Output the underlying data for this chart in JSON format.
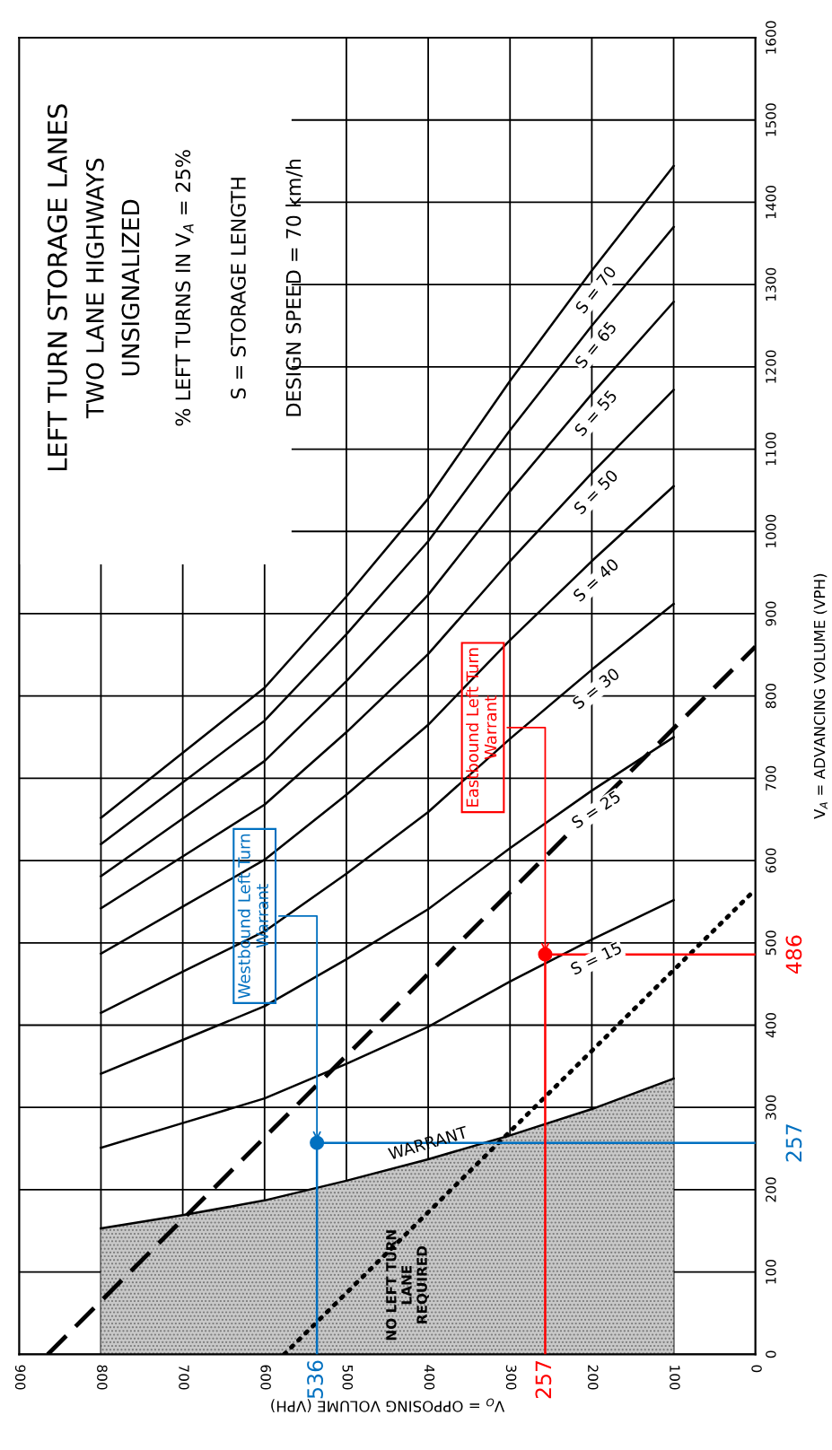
{
  "chart_data": {
    "type": "line",
    "title": "LEFT TURN STORAGE LANES",
    "subtitle": "TWO LANE HIGHWAYS\nUNSIGNALIZED",
    "xlabel": "V$_{O}$ = OPPOSING VOLUME (VPH)",
    "ylabel": "V$_{A}$ = ADVANCING VOLUME (VPH)",
    "xlim": [
      900,
      0
    ],
    "ylim": [
      0,
      1600
    ],
    "xticks": [
      900,
      800,
      700,
      600,
      500,
      400,
      300,
      200,
      100,
      0
    ],
    "yticks": [
      0,
      100,
      200,
      300,
      400,
      500,
      600,
      700,
      800,
      900,
      1000,
      1100,
      1200,
      1300,
      1400,
      1500,
      1600
    ],
    "grid": true,
    "series": [
      {
        "type": "area",
        "name": "WARRANT",
        "color": "#c8c8c8",
        "x": [
          800,
          700,
          600,
          500,
          400,
          300,
          200,
          100
        ],
        "values": [
          153,
          169,
          187,
          211,
          237,
          266,
          298,
          335
        ]
      },
      {
        "name": "S = 15",
        "color": "#000000",
        "x": [
          800,
          700,
          600,
          500,
          400,
          300,
          200,
          100
        ],
        "values": [
          251,
          281,
          311,
          353,
          398,
          453,
          504,
          552
        ]
      },
      {
        "name": "S = 25",
        "color": "#000000",
        "x": [
          800,
          700,
          600,
          500,
          400,
          300,
          200,
          100
        ],
        "values": [
          341,
          382,
          423,
          480,
          541,
          615,
          685,
          750
        ]
      },
      {
        "name": "S = 30",
        "color": "#000000",
        "x": [
          800,
          700,
          600,
          500,
          400,
          300,
          200,
          100
        ],
        "values": [
          415,
          465,
          514,
          584,
          659,
          748,
          832,
          912
        ]
      },
      {
        "name": "S = 40",
        "color": "#000000",
        "x": [
          800,
          700,
          600,
          500,
          400,
          300,
          200,
          100
        ],
        "values": [
          487,
          544,
          601,
          680,
          765,
          868,
          964,
          1055
        ]
      },
      {
        "name": "S = 50",
        "color": "#000000",
        "x": [
          800,
          700,
          600,
          500,
          400,
          300,
          200,
          100
        ],
        "values": [
          542,
          605,
          668,
          756,
          851,
          964,
          1071,
          1172
        ]
      },
      {
        "name": "S = 55",
        "color": "#000000",
        "x": [
          800,
          700,
          600,
          500,
          400,
          300,
          200,
          100
        ],
        "values": [
          581,
          651,
          721,
          818,
          923,
          1049,
          1167,
          1279
        ]
      },
      {
        "name": "S = 65",
        "color": "#000000",
        "x": [
          800,
          700,
          600,
          500,
          400,
          300,
          200,
          100
        ],
        "values": [
          620,
          695,
          770,
          875,
          988,
          1123,
          1250,
          1370
        ]
      },
      {
        "name": "S = 70",
        "color": "#000000",
        "x": [
          800,
          700,
          600,
          500,
          400,
          300,
          200,
          100
        ],
        "values": [
          652,
          731,
          810,
          921,
          1040,
          1183,
          1317,
          1444
        ]
      },
      {
        "color": "#000000",
        "line_style": "dashed",
        "x": [
          865,
          0
        ],
        "values": [
          0,
          860
        ]
      },
      {
        "color": "#000000",
        "line_style": "dotted",
        "x": [
          576,
          0
        ],
        "values": [
          0,
          565
        ]
      },
      {
        "color": "#0070c0",
        "x": [
          536,
          536,
          0
        ],
        "values": [
          0,
          257,
          257
        ]
      },
      {
        "type": "scatter",
        "marker": "circle",
        "color": "#0070c0",
        "x": [
          536
        ],
        "values": [
          257
        ]
      },
      {
        "color": "#ff0000",
        "x": [
          257,
          257,
          0
        ],
        "values": [
          0,
          486,
          486
        ]
      },
      {
        "type": "scatter",
        "marker": "circle",
        "color": "#ff0000",
        "x": [
          257
        ],
        "values": [
          486
        ]
      }
    ],
    "annotations": [
      "% LEFT TURNS IN V$_{A}$ = 25%",
      "S = STORAGE LENGTH",
      "DESIGN SPEED = 70 km/h",
      "NO LEFT TURN\nLANE\nREQUIRED",
      {
        "text": "Westbound Left Turn\nWarrant",
        "x": 536,
        "y": 257
      },
      {
        "text": "Eastbound Left Turn\nWarrant",
        "x": 257,
        "y": 486
      },
      {
        "text": "536",
        "x": 536,
        "y": 0
      },
      {
        "text": "257",
        "x": 0,
        "y": 257
      },
      {
        "text": "257",
        "x": 257,
        "y": 0
      },
      {
        "text": "486",
        "x": 0,
        "y": 486
      }
    ]
  }
}
